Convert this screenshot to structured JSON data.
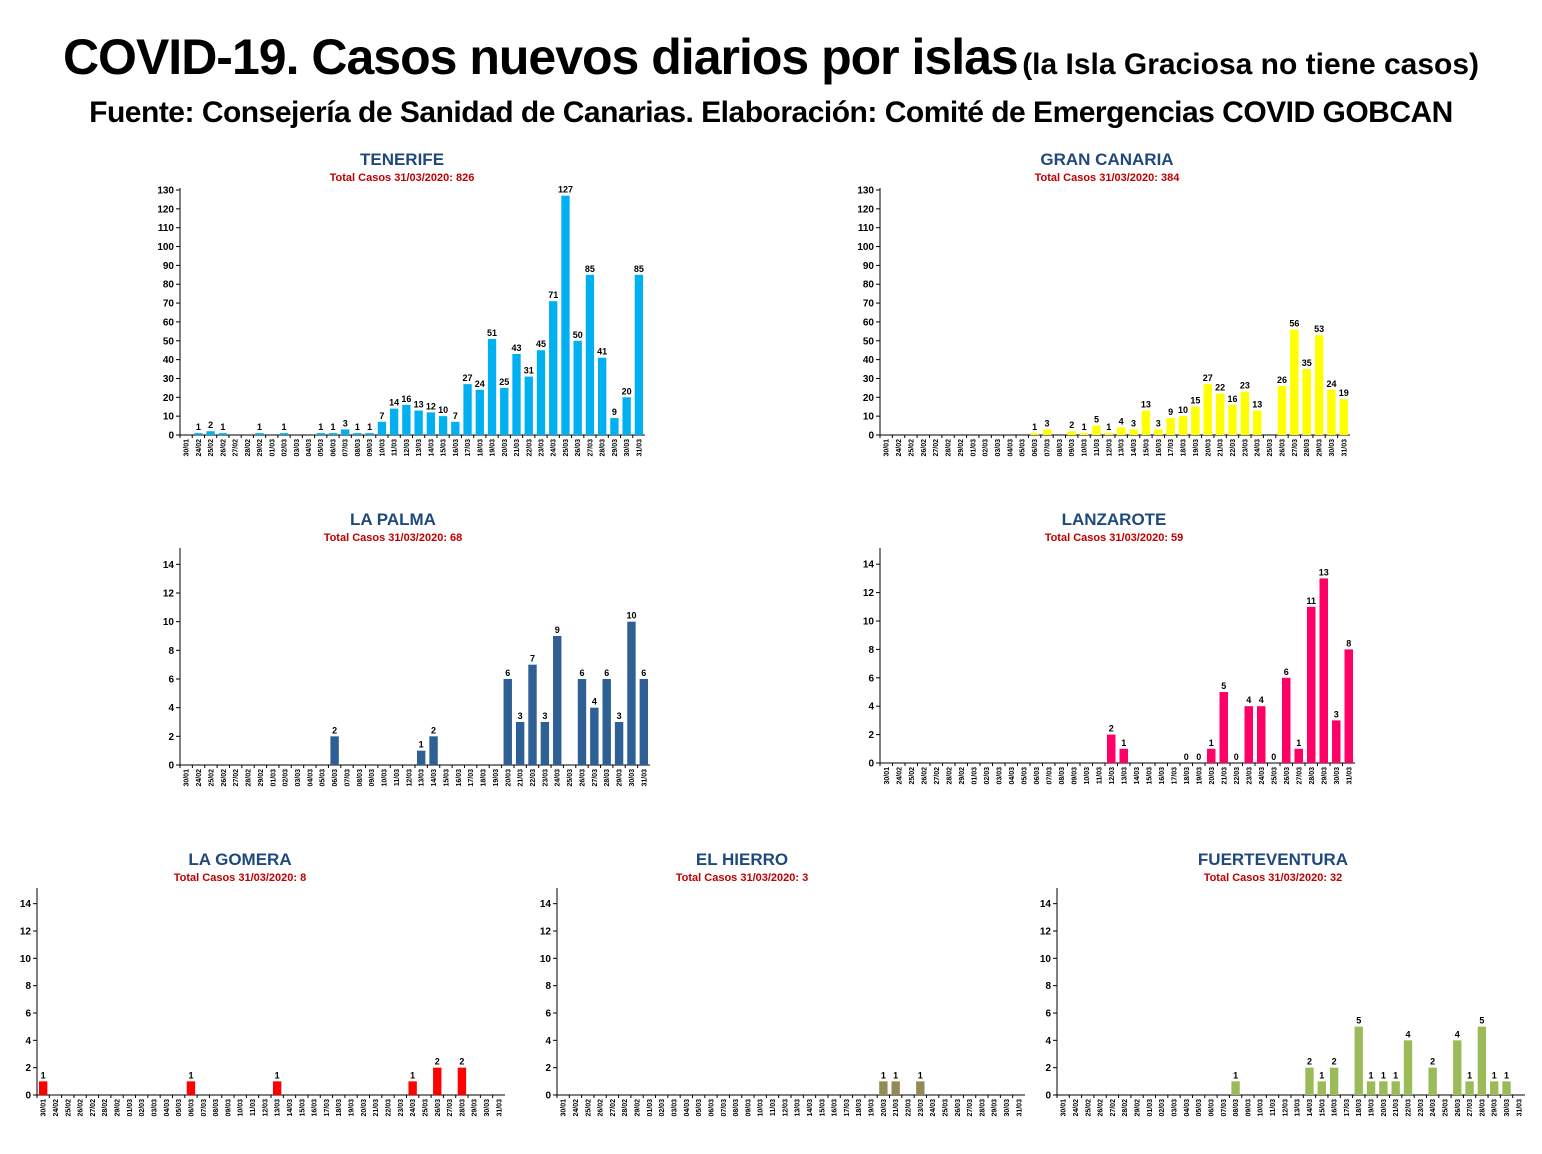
{
  "header": {
    "title_main": "COVID-19. Casos nuevos diarios por islas",
    "title_note": "(la Isla Graciosa no tiene casos)",
    "source": "Fuente: Consejería de Sanidad de Canarias. Elaboración: Comité de Emergencias COVID GOBCAN"
  },
  "chart_data": [
    {
      "type": "bar",
      "id": "tenerife",
      "title": "TENERIFE",
      "subtitle": "Total Casos 31/03/2020: 826",
      "color": "#00B0F0",
      "ylim": [
        0,
        130
      ],
      "ystep": 10,
      "categories": [
        "30/01",
        "24/02",
        "25/02",
        "26/02",
        "27/02",
        "28/02",
        "29/02",
        "01/03",
        "02/03",
        "03/03",
        "04/03",
        "05/03",
        "06/03",
        "07/03",
        "08/03",
        "09/03",
        "10/03",
        "11/03",
        "12/03",
        "13/03",
        "14/03",
        "15/03",
        "16/03",
        "17/03",
        "18/03",
        "19/03",
        "20/03",
        "21/03",
        "22/03",
        "23/03",
        "24/03",
        "25/03",
        "26/03",
        "27/03",
        "28/03",
        "29/03",
        "30/03",
        "31/03"
      ],
      "values": [
        0,
        1,
        2,
        1,
        0,
        0,
        1,
        0,
        1,
        0,
        0,
        1,
        1,
        3,
        1,
        1,
        7,
        14,
        16,
        13,
        12,
        10,
        7,
        27,
        24,
        51,
        25,
        43,
        31,
        45,
        71,
        127,
        50,
        85,
        41,
        9,
        20,
        85
      ],
      "labels": [
        "",
        "1",
        "2",
        "1",
        "",
        "",
        "1",
        "",
        "1",
        "",
        "",
        "1",
        "1",
        "3",
        "1",
        "1",
        "7",
        "14",
        "16",
        "13",
        "12",
        "10",
        "7",
        "27",
        "24",
        "51",
        "25",
        "43",
        "31",
        "45",
        "71",
        "127",
        "50",
        "85",
        "41",
        "9",
        "20",
        "85"
      ]
    },
    {
      "type": "bar",
      "id": "gran-canaria",
      "title": "GRAN CANARIA",
      "subtitle": "Total Casos 31/03/2020: 384",
      "color": "#FFFF00",
      "ylim": [
        0,
        130
      ],
      "ystep": 10,
      "categories": [
        "30/01",
        "24/02",
        "25/02",
        "26/02",
        "27/02",
        "28/02",
        "29/02",
        "01/03",
        "02/03",
        "03/03",
        "04/03",
        "05/03",
        "06/03",
        "07/03",
        "08/03",
        "09/03",
        "10/03",
        "11/03",
        "12/03",
        "13/03",
        "14/03",
        "15/03",
        "16/03",
        "17/03",
        "18/03",
        "19/03",
        "20/03",
        "21/03",
        "22/03",
        "23/03",
        "24/03",
        "25/03",
        "26/03",
        "27/03",
        "28/03",
        "29/03",
        "30/03",
        "31/03"
      ],
      "values": [
        0,
        0,
        0,
        0,
        0,
        0,
        0,
        0,
        0,
        0,
        0,
        0,
        1,
        3,
        0,
        2,
        1,
        5,
        1,
        4,
        3,
        13,
        3,
        9,
        10,
        15,
        27,
        22,
        16,
        23,
        13,
        0,
        26,
        56,
        35,
        53,
        24,
        19
      ],
      "labels": [
        "",
        "",
        "",
        "",
        "",
        "",
        "",
        "",
        "",
        "",
        "",
        "",
        "1",
        "3",
        "",
        "2",
        "1",
        "5",
        "1",
        "4",
        "3",
        "13",
        "3",
        "9",
        "10",
        "15",
        "27",
        "22",
        "16",
        "23",
        "13",
        "",
        "26",
        "56",
        "35",
        "53",
        "24",
        "19"
      ]
    },
    {
      "type": "bar",
      "id": "la-palma",
      "title": "LA PALMA",
      "subtitle": "Total Casos 31/03/2020: 68",
      "color": "#2E5F95",
      "ylim": [
        0,
        15
      ],
      "ystep": 2,
      "categories": [
        "30/01",
        "24/02",
        "25/02",
        "26/02",
        "27/02",
        "28/02",
        "29/02",
        "01/03",
        "02/03",
        "03/03",
        "04/03",
        "05/03",
        "06/03",
        "07/03",
        "08/03",
        "09/03",
        "10/03",
        "11/03",
        "12/03",
        "13/03",
        "14/03",
        "15/03",
        "16/03",
        "17/03",
        "18/03",
        "19/03",
        "20/03",
        "21/03",
        "22/03",
        "23/03",
        "24/03",
        "25/03",
        "26/03",
        "27/03",
        "28/03",
        "29/03",
        "30/03",
        "31/03"
      ],
      "values": [
        0,
        0,
        0,
        0,
        0,
        0,
        0,
        0,
        0,
        0,
        0,
        0,
        2,
        0,
        0,
        0,
        0,
        0,
        0,
        1,
        2,
        0,
        0,
        0,
        0,
        0,
        6,
        3,
        7,
        3,
        9,
        0,
        6,
        4,
        6,
        3,
        10,
        6
      ],
      "labels": [
        "",
        "",
        "",
        "",
        "",
        "",
        "",
        "",
        "",
        "",
        "",
        "",
        "2",
        "",
        "",
        "",
        "",
        "",
        "",
        "1",
        "2",
        "",
        "",
        "",
        "",
        "",
        "6",
        "3",
        "7",
        "3",
        "9",
        "",
        "6",
        "4",
        "6",
        "3",
        "10",
        "6"
      ]
    },
    {
      "type": "bar",
      "id": "lanzarote",
      "title": "LANZAROTE",
      "subtitle": "Total Casos 31/03/2020: 59",
      "color": "#FF0066",
      "ylim": [
        0,
        15
      ],
      "ystep": 2,
      "categories": [
        "30/01",
        "24/02",
        "25/02",
        "26/02",
        "27/02",
        "28/02",
        "29/02",
        "01/03",
        "02/03",
        "03/03",
        "04/03",
        "05/03",
        "06/03",
        "07/03",
        "08/03",
        "09/03",
        "10/03",
        "11/03",
        "12/03",
        "13/03",
        "14/03",
        "15/03",
        "16/03",
        "17/03",
        "18/03",
        "19/03",
        "20/03",
        "21/03",
        "22/03",
        "23/03",
        "24/03",
        "25/03",
        "26/03",
        "27/03",
        "28/03",
        "29/03",
        "30/03",
        "31/03"
      ],
      "values": [
        0,
        0,
        0,
        0,
        0,
        0,
        0,
        0,
        0,
        0,
        0,
        0,
        0,
        0,
        0,
        0,
        0,
        0,
        2,
        1,
        0,
        0,
        0,
        0,
        0,
        0,
        1,
        5,
        0,
        4,
        4,
        0,
        6,
        1,
        11,
        13,
        3,
        8
      ],
      "labels": [
        "",
        "",
        "",
        "",
        "",
        "",
        "",
        "",
        "",
        "",
        "",
        "",
        "",
        "",
        "",
        "",
        "",
        "",
        "2",
        "1",
        "",
        "",
        "",
        "",
        "0",
        "0",
        "1",
        "5",
        "0",
        "4",
        "4",
        "0",
        "6",
        "1",
        "11",
        "13",
        "3",
        "8"
      ]
    },
    {
      "type": "bar",
      "id": "la-gomera",
      "title": "LA GOMERA",
      "subtitle": "Total Casos 31/03/2020: 8",
      "color": "#FF0000",
      "ylim": [
        0,
        15
      ],
      "ystep": 2,
      "categories": [
        "30/01",
        "24/02",
        "25/02",
        "26/02",
        "27/02",
        "28/02",
        "29/02",
        "01/03",
        "02/03",
        "03/03",
        "04/03",
        "05/03",
        "06/03",
        "07/03",
        "08/03",
        "09/03",
        "10/03",
        "11/03",
        "12/03",
        "13/03",
        "14/03",
        "15/03",
        "16/03",
        "17/03",
        "18/03",
        "19/03",
        "20/03",
        "21/03",
        "22/03",
        "23/03",
        "24/03",
        "25/03",
        "26/03",
        "27/03",
        "28/03",
        "29/03",
        "30/03",
        "31/03"
      ],
      "values": [
        1,
        0,
        0,
        0,
        0,
        0,
        0,
        0,
        0,
        0,
        0,
        0,
        1,
        0,
        0,
        0,
        0,
        0,
        0,
        1,
        0,
        0,
        0,
        0,
        0,
        0,
        0,
        0,
        0,
        0,
        1,
        0,
        2,
        0,
        2,
        0,
        0,
        0
      ],
      "labels": [
        "1",
        "",
        "",
        "",
        "",
        "",
        "",
        "",
        "",
        "",
        "",
        "",
        "1",
        "",
        "",
        "",
        "",
        "",
        "",
        "1",
        "",
        "",
        "",
        "",
        "",
        "",
        "",
        "",
        "",
        "",
        "1",
        "",
        "2",
        "",
        "2",
        "",
        "",
        ""
      ]
    },
    {
      "type": "bar",
      "id": "el-hierro",
      "title": "EL HIERRO",
      "subtitle": "Total Casos 31/03/2020: 3",
      "color": "#948A54",
      "ylim": [
        0,
        15
      ],
      "ystep": 2,
      "categories": [
        "30/01",
        "24/02",
        "25/02",
        "26/02",
        "27/02",
        "28/02",
        "29/02",
        "01/03",
        "02/03",
        "03/03",
        "04/03",
        "05/03",
        "06/03",
        "07/03",
        "08/03",
        "09/03",
        "10/03",
        "11/03",
        "12/03",
        "13/03",
        "14/03",
        "15/03",
        "16/03",
        "17/03",
        "18/03",
        "19/03",
        "20/03",
        "21/03",
        "22/03",
        "23/03",
        "24/03",
        "25/03",
        "26/03",
        "27/03",
        "28/03",
        "29/03",
        "30/03",
        "31/03"
      ],
      "values": [
        0,
        0,
        0,
        0,
        0,
        0,
        0,
        0,
        0,
        0,
        0,
        0,
        0,
        0,
        0,
        0,
        0,
        0,
        0,
        0,
        0,
        0,
        0,
        0,
        0,
        0,
        1,
        1,
        0,
        1,
        0,
        0,
        0,
        0,
        0,
        0,
        0,
        0
      ],
      "labels": [
        "",
        "",
        "",
        "",
        "",
        "",
        "",
        "",
        "",
        "",
        "",
        "",
        "",
        "",
        "",
        "",
        "",
        "",
        "",
        "",
        "",
        "",
        "",
        "",
        "",
        "",
        "1",
        "1",
        "",
        "1",
        "",
        "",
        "",
        "",
        "",
        "",
        "",
        ""
      ]
    },
    {
      "type": "bar",
      "id": "fuerteventura",
      "title": "FUERTEVENTURA",
      "subtitle": "Total Casos 31/03/2020: 32",
      "color": "#9BBB59",
      "ylim": [
        0,
        15
      ],
      "ystep": 2,
      "categories": [
        "30/01",
        "24/02",
        "25/02",
        "26/02",
        "27/02",
        "28/02",
        "29/02",
        "01/03",
        "02/03",
        "03/03",
        "04/03",
        "05/03",
        "06/03",
        "07/03",
        "08/03",
        "09/03",
        "10/03",
        "11/03",
        "12/03",
        "13/03",
        "14/03",
        "15/03",
        "16/03",
        "17/03",
        "18/03",
        "19/03",
        "20/03",
        "21/03",
        "22/03",
        "23/03",
        "24/03",
        "25/03",
        "26/03",
        "27/03",
        "28/03",
        "29/03",
        "30/03",
        "31/03"
      ],
      "values": [
        0,
        0,
        0,
        0,
        0,
        0,
        0,
        0,
        0,
        0,
        0,
        0,
        0,
        0,
        1,
        0,
        0,
        0,
        0,
        0,
        2,
        1,
        2,
        0,
        5,
        1,
        1,
        1,
        4,
        0,
        2,
        0,
        4,
        1,
        5,
        1,
        1,
        0
      ],
      "labels": [
        "",
        "",
        "",
        "",
        "",
        "",
        "",
        "",
        "",
        "",
        "",
        "",
        "",
        "",
        "1",
        "",
        "",
        "",
        "",
        "",
        "2",
        "1",
        "2",
        "",
        "5",
        "1",
        "1",
        "1",
        "4",
        "",
        "2",
        "",
        "4",
        "1",
        "5",
        "1",
        "1",
        ""
      ]
    }
  ]
}
